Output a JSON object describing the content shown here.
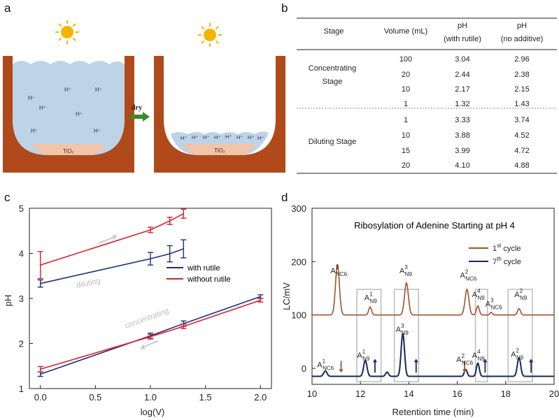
{
  "panels": {
    "a": "a",
    "b": "b",
    "c": "c",
    "d": "d"
  },
  "panel_a": {
    "ions_left": [
      "H⁺",
      "H⁺",
      "H⁺",
      "H⁺",
      "H⁺",
      "H⁺",
      "H⁺"
    ],
    "ions_right": [
      "H⁺",
      "H⁺",
      "H⁺",
      "H⁺",
      "H⁺",
      "H⁺",
      "H⁺",
      "H⁺"
    ],
    "tio2": "TiO₂",
    "arrow_label": "dry",
    "colors": {
      "beaker": "#b04a1a",
      "water": "#bcd3e8",
      "tio2": "#f2c4a8",
      "sun": "#f5b400",
      "arrow": "#3a8a2a"
    }
  },
  "table": {
    "headers": [
      "Stage",
      "Volume (mL)",
      "pH",
      "(with rutile)",
      "pH",
      "(no additive)"
    ],
    "groups": [
      {
        "stage": [
          "Concentrating",
          "Stage"
        ],
        "rows": [
          [
            "100",
            "3.04",
            "2.96"
          ],
          [
            "20",
            "2.44",
            "2.38"
          ],
          [
            "10",
            "2.17",
            "2.15"
          ],
          [
            "1",
            "1.32",
            "1.43"
          ]
        ]
      },
      {
        "stage": [
          "Diluting Stage"
        ],
        "rows": [
          [
            "1",
            "3.33",
            "3.74"
          ],
          [
            "10",
            "3.88",
            "4.52"
          ],
          [
            "15",
            "3.99",
            "4.72"
          ],
          [
            "20",
            "4.10",
            "4.88"
          ]
        ]
      }
    ]
  },
  "chart_data": [
    {
      "type": "line",
      "xlabel": "log(V)",
      "ylabel": "pH",
      "xlim": [
        -0.1,
        2.1
      ],
      "ylim": [
        1,
        5
      ],
      "xticks": [
        "0.0",
        "0.5",
        "1.0",
        "1.5",
        "2.0"
      ],
      "yticks": [
        "1",
        "2",
        "3",
        "4",
        "5"
      ],
      "legend_position": "center-right",
      "annotations": [
        "diluting",
        "concentrating"
      ],
      "series": [
        {
          "name": "with rutile",
          "color": "#1c2f80",
          "concentrating": {
            "x": [
              0,
              1.0,
              1.301,
              2.0
            ],
            "y": [
              1.32,
              2.17,
              2.44,
              3.04
            ],
            "err": [
              0.05,
              0.06,
              0.06,
              0.04
            ]
          },
          "diluting": {
            "x": [
              0,
              1.0,
              1.176,
              1.301
            ],
            "y": [
              3.33,
              3.88,
              3.99,
              4.1
            ],
            "err": [
              0.08,
              0.14,
              0.18,
              0.2
            ]
          }
        },
        {
          "name": "without rutile",
          "color": "#d9212b",
          "concentrating": {
            "x": [
              0,
              1.0,
              1.301,
              2.0
            ],
            "y": [
              1.43,
              2.15,
              2.38,
              2.96
            ],
            "err": [
              0.06,
              0.05,
              0.05,
              0.04
            ]
          },
          "diluting": {
            "x": [
              0,
              1.0,
              1.176,
              1.301
            ],
            "y": [
              3.74,
              4.52,
              4.72,
              4.88
            ],
            "err": [
              0.3,
              0.06,
              0.08,
              0.1
            ]
          }
        }
      ]
    },
    {
      "type": "line",
      "title": "Ribosylation of Adenine Starting at pH 4",
      "xlabel": "Retention time (min)",
      "ylabel": "LC/mV",
      "xlim": [
        10,
        20
      ],
      "ylim": [
        -30,
        300
      ],
      "xticks": [
        "10",
        "12",
        "14",
        "16",
        "18",
        "20"
      ],
      "yticks": [
        "0",
        "100",
        "200",
        "300"
      ],
      "legend_position": "top-right",
      "series": [
        {
          "name": "1st cycle",
          "color": "#a0522d",
          "baseline": 100,
          "peaks": [
            {
              "t": 11.05,
              "h": 95,
              "w": 0.08
            },
            {
              "t": 12.4,
              "h": 15,
              "w": 0.06
            },
            {
              "t": 13.9,
              "h": 60,
              "w": 0.08
            },
            {
              "t": 16.4,
              "h": 48,
              "w": 0.08
            },
            {
              "t": 16.85,
              "h": 17,
              "w": 0.06
            },
            {
              "t": 17.4,
              "h": 5,
              "w": 0.05
            },
            {
              "t": 18.55,
              "h": 12,
              "w": 0.06
            }
          ]
        },
        {
          "name": "7th cycle",
          "color": "#14285e",
          "baseline": -15,
          "peaks": [
            {
              "t": 10.55,
              "h": 10,
              "w": 0.07
            },
            {
              "t": 12.2,
              "h": 30,
              "w": 0.07
            },
            {
              "t": 13.1,
              "h": 8,
              "w": 0.06
            },
            {
              "t": 13.75,
              "h": 80,
              "w": 0.07
            },
            {
              "t": 16.35,
              "h": 13,
              "w": 0.06
            },
            {
              "t": 16.85,
              "h": 25,
              "w": 0.06
            },
            {
              "t": 18.55,
              "h": 35,
              "w": 0.07
            }
          ]
        }
      ],
      "labels": [
        {
          "text": "A",
          "sup": "1",
          "sub": "NC6",
          "t": 11.05,
          "y": 178
        },
        {
          "text": "A",
          "sup": "1",
          "sub": "N9",
          "t": 12.45,
          "y": 128
        },
        {
          "text": "A",
          "sup": "3",
          "sub": "N9",
          "t": 13.9,
          "y": 178
        },
        {
          "text": "A",
          "sup": "2",
          "sub": "NC6",
          "t": 16.4,
          "y": 170
        },
        {
          "text": "A",
          "sup": "4",
          "sub": "N9",
          "t": 16.9,
          "y": 134
        },
        {
          "text": "A",
          "sup": "3",
          "sub": "NC6",
          "t": 17.45,
          "y": 116
        },
        {
          "text": "A",
          "sup": "2",
          "sub": "N9",
          "t": 18.65,
          "y": 134
        },
        {
          "text": "A",
          "sup": "1",
          "sub": "NC6",
          "t": 10.5,
          "y": 2
        },
        {
          "text": "A",
          "sup": "1",
          "sub": "N9",
          "t": 12.15,
          "y": 20
        },
        {
          "text": "A",
          "sup": "3",
          "sub": "N9",
          "t": 13.75,
          "y": 68
        },
        {
          "text": "A",
          "sup": "2",
          "sub": "NC6",
          "t": 16.25,
          "y": 12
        },
        {
          "text": "A",
          "sup": "4",
          "sub": "N9",
          "t": 16.9,
          "y": 20
        },
        {
          "text": "A",
          "sup": "2",
          "sub": "N9",
          "t": 18.5,
          "y": 22
        }
      ],
      "boxes": [
        [
          11.85,
          12.85
        ],
        [
          13.4,
          14.4
        ],
        [
          16.75,
          17.25
        ],
        [
          18.1,
          19.1
        ]
      ],
      "arrows_up": [
        12.6,
        14.3,
        17.15,
        19.05
      ],
      "arrows_down": [
        11.2,
        16.3
      ],
      "legend": [
        {
          "label": "1",
          "sup": "st",
          "rest": " cycle"
        },
        {
          "label": "7",
          "sup": "th",
          "rest": " cycle"
        }
      ]
    }
  ]
}
